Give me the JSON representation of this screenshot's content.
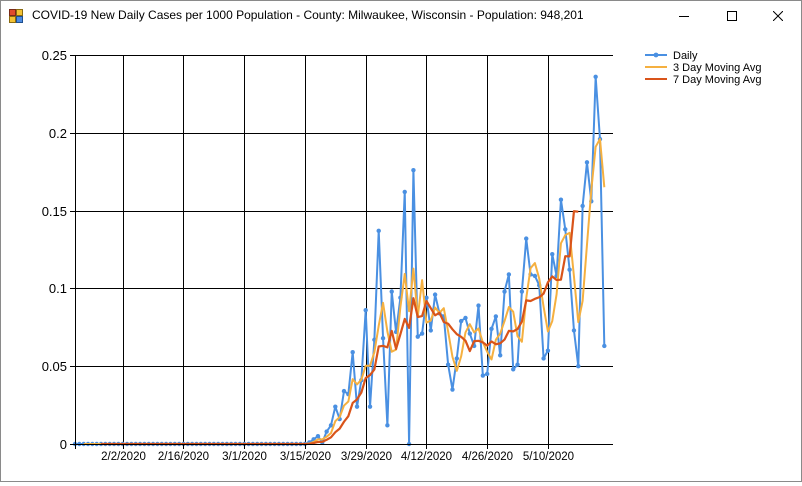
{
  "window": {
    "title": "COVID-19 New Daily Cases per 1000 Population - County: Milwaukee, Wisconsin - Population: 948,201",
    "icon": "chart-app-icon",
    "controls": [
      "minimize-icon",
      "maximize-icon",
      "close-icon"
    ]
  },
  "colors": {
    "daily": "#4a90e2",
    "avg3": "#f5b040",
    "avg7": "#d9541a",
    "grid": "#000000"
  },
  "chart_data": {
    "type": "line",
    "title": "",
    "xlabel": "",
    "ylabel": "",
    "x_start": "1/22/2020",
    "days": 119,
    "xlim": [
      0,
      124
    ],
    "ylim": [
      0,
      0.25
    ],
    "y_ticks": [
      0,
      0.05,
      0.1,
      0.15,
      0.2,
      0.25
    ],
    "y_tick_labels": [
      "0",
      "0.05",
      "0.1",
      "0.15",
      "0.2",
      "0.25"
    ],
    "x_ticks": [
      11,
      25,
      39,
      53,
      67,
      81,
      95,
      109
    ],
    "x_tick_labels": [
      "2/2/2020",
      "2/16/2020",
      "3/1/2020",
      "3/15/2020",
      "3/29/2020",
      "4/12/2020",
      "4/26/2020",
      "5/10/2020"
    ],
    "grid": true,
    "legend": "right",
    "series": [
      {
        "name": "Daily",
        "color": "#4a90e2",
        "markers": true,
        "values": [
          0,
          0,
          0,
          0,
          0,
          0,
          0,
          0,
          0,
          0,
          0,
          0,
          0,
          0,
          0,
          0,
          0,
          0,
          0,
          0,
          0,
          0,
          0,
          0,
          0,
          0,
          0,
          0,
          0,
          0,
          0,
          0,
          0,
          0,
          0,
          0,
          0,
          0,
          0,
          0,
          0,
          0,
          0,
          0,
          0,
          0,
          0,
          0,
          0,
          0,
          0,
          0,
          0,
          0,
          0.001,
          0.003,
          0.005,
          0.001,
          0.008,
          0.012,
          0.024,
          0.016,
          0.034,
          0.032,
          0.059,
          0.024,
          0.041,
          0.086,
          0.024,
          0.067,
          0.137,
          0.068,
          0.012,
          0.098,
          0.072,
          0.094,
          0.162,
          0,
          0.176,
          0.069,
          0.071,
          0.094,
          0.073,
          0.096,
          0.084,
          0.082,
          0.051,
          0.035,
          0.055,
          0.079,
          0.081,
          0.071,
          0.063,
          0.089,
          0.044,
          0.045,
          0.074,
          0.082,
          0.057,
          0.098,
          0.109,
          0.048,
          0.051,
          0.098,
          0.132,
          0.109,
          0.108,
          0.102,
          0.055,
          0.06,
          0.122,
          0.108,
          0.157,
          0.138,
          0.112,
          0.073,
          0.05,
          0.153,
          0.181,
          0.156,
          0.236,
          0.196,
          0.063
        ]
      },
      {
        "name": "3 Day Moving Avg",
        "color": "#f5b040",
        "markers": false,
        "start": 2,
        "values": [
          0,
          0,
          0,
          0,
          0,
          0,
          0,
          0,
          0,
          0,
          0,
          0,
          0,
          0,
          0,
          0,
          0,
          0,
          0,
          0,
          0,
          0,
          0,
          0,
          0,
          0,
          0,
          0,
          0,
          0,
          0,
          0,
          0,
          0,
          0,
          0,
          0,
          0,
          0,
          0,
          0,
          0,
          0,
          0,
          0,
          0,
          0,
          0,
          0,
          0,
          0,
          0,
          0.0003,
          0.0013,
          0.003,
          0.003,
          0.0047,
          0.007,
          0.0147,
          0.0173,
          0.0247,
          0.0273,
          0.0417,
          0.0383,
          0.0413,
          0.0503,
          0.0503,
          0.059,
          0.076,
          0.0907,
          0.0723,
          0.0593,
          0.0607,
          0.088,
          0.1093,
          0.0853,
          0.1127,
          0.0817,
          0.1053,
          0.078,
          0.0793,
          0.0877,
          0.0843,
          0.0873,
          0.0723,
          0.056,
          0.047,
          0.0563,
          0.0717,
          0.077,
          0.0717,
          0.0743,
          0.0653,
          0.0593,
          0.0543,
          0.067,
          0.071,
          0.079,
          0.088,
          0.085,
          0.0693,
          0.0657,
          0.0937,
          0.113,
          0.1163,
          0.1063,
          0.0883,
          0.0723,
          0.079,
          0.0963,
          0.129,
          0.1343,
          0.1357,
          0.1077,
          0.0783,
          0.092,
          0.128,
          0.1633,
          0.191,
          0.196,
          0.165
        ]
      },
      {
        "name": "7 Day Moving Avg",
        "color": "#d9541a",
        "markers": false,
        "start": 6,
        "values": [
          0,
          0,
          0,
          0,
          0,
          0,
          0,
          0,
          0,
          0,
          0,
          0,
          0,
          0,
          0,
          0,
          0,
          0,
          0,
          0,
          0,
          0,
          0,
          0,
          0,
          0,
          0,
          0,
          0,
          0,
          0,
          0,
          0,
          0,
          0,
          0,
          0,
          0,
          0,
          0,
          0,
          0,
          0,
          0,
          0,
          0,
          0,
          0,
          0.0001,
          0.0006,
          0.0013,
          0.0014,
          0.0027,
          0.0043,
          0.0076,
          0.0099,
          0.0143,
          0.0179,
          0.0264,
          0.0287,
          0.0331,
          0.0424,
          0.0443,
          0.0479,
          0.0627,
          0.0631,
          0.0621,
          0.0727,
          0.0611,
          0.0706,
          0.0804,
          0.0746,
          0.0937,
          0.0816,
          0.0822,
          0.0919,
          0.0873,
          0.0827,
          0.0843,
          0.0784,
          0.0773,
          0.0737,
          0.0706,
          0.0689,
          0.0664,
          0.0597,
          0.0661,
          0.0663,
          0.0653,
          0.0632,
          0.0659,
          0.0641,
          0.0647,
          0.0671,
          0.0727,
          0.0724,
          0.0739,
          0.0787,
          0.0923,
          0.0919,
          0.0933,
          0.0943,
          0.0966,
          0.1039,
          0.1077,
          0.1054,
          0.1056,
          0.1207,
          0.1206,
          0.1496,
          0.1493
        ]
      }
    ]
  }
}
